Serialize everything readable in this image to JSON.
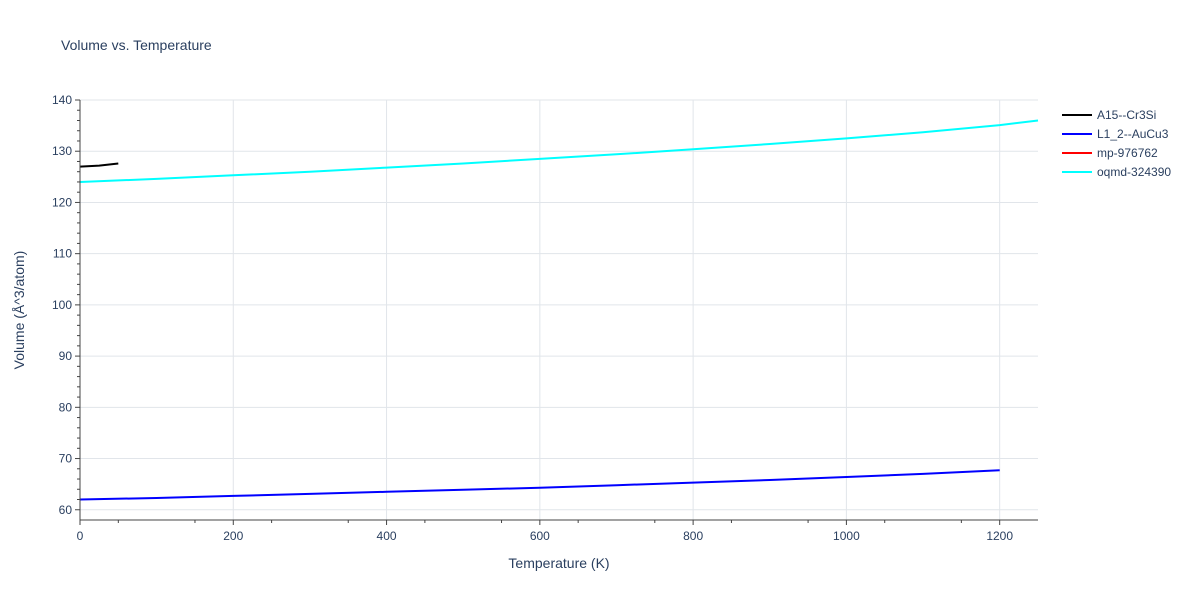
{
  "chart_data": {
    "type": "line",
    "title": "Volume vs. Temperature",
    "xlabel": "Temperature (K)",
    "ylabel": "Volume (Å^3/atom)",
    "xlim": [
      0,
      1250
    ],
    "ylim": [
      58,
      140
    ],
    "xticks": [
      0,
      200,
      400,
      600,
      800,
      1000,
      1200
    ],
    "yticks": [
      60,
      70,
      80,
      90,
      100,
      110,
      120,
      130,
      140
    ],
    "grid": true,
    "legend_position": "top-right",
    "series": [
      {
        "name": "A15--Cr3Si",
        "color": "#000000",
        "x": [
          0,
          25,
          50
        ],
        "y": [
          127.0,
          127.2,
          127.6
        ]
      },
      {
        "name": "L1_2--AuCu3",
        "color": "#0000ff",
        "x": [
          0,
          100,
          200,
          300,
          400,
          500,
          600,
          700,
          800,
          900,
          1000,
          1100,
          1200
        ],
        "y": [
          62.0,
          62.3,
          62.7,
          63.1,
          63.5,
          63.9,
          64.3,
          64.8,
          65.3,
          65.8,
          66.4,
          67.0,
          67.7
        ]
      },
      {
        "name": "mp-976762",
        "color": "#ff0000",
        "x": [],
        "y": []
      },
      {
        "name": "oqmd-324390",
        "color": "#00ffff",
        "x": [
          0,
          100,
          200,
          300,
          400,
          500,
          600,
          700,
          800,
          900,
          1000,
          1100,
          1200,
          1250
        ],
        "y": [
          124.0,
          124.6,
          125.3,
          126.0,
          126.8,
          127.6,
          128.5,
          129.4,
          130.4,
          131.4,
          132.5,
          133.7,
          135.1,
          136.0
        ]
      }
    ]
  }
}
